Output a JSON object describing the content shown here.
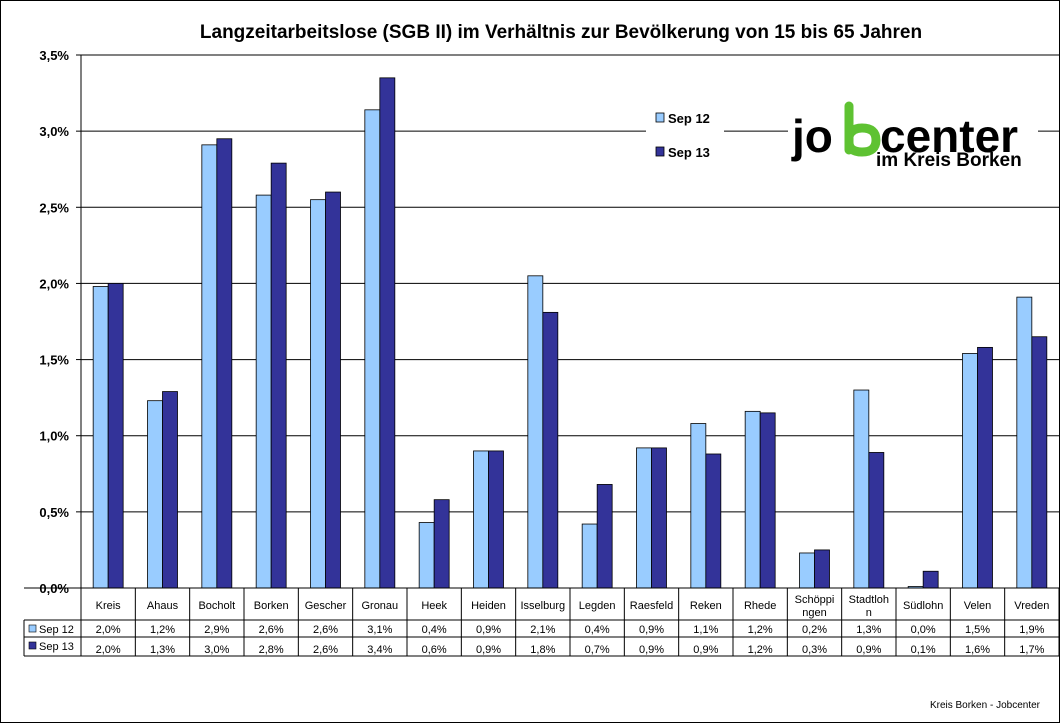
{
  "chart_data": {
    "type": "bar",
    "title": "Langzeitarbeitslose (SGB II) im Verhältnis zur Bevölkerung von 15 bis 65 Jahren",
    "categories": [
      "Kreis",
      "Ahaus",
      "Bocholt",
      "Borken",
      "Gescher",
      "Gronau",
      "Heek",
      "Heiden",
      "Isselburg",
      "Legden",
      "Raesfeld",
      "Reken",
      "Rhede",
      "Schöppi ngen",
      "Stadtloh n",
      "Südlohn",
      "Velen",
      "Vreden"
    ],
    "series": [
      {
        "name": "Sep 12",
        "color": "#99ccff",
        "values": [
          1.98,
          1.23,
          2.91,
          2.58,
          2.55,
          3.14,
          0.43,
          0.9,
          2.05,
          0.42,
          0.92,
          1.08,
          1.16,
          0.23,
          1.3,
          0.01,
          1.54,
          1.91
        ],
        "labels": [
          "2,0%",
          "1,2%",
          "2,9%",
          "2,6%",
          "2,6%",
          "3,1%",
          "0,4%",
          "0,9%",
          "2,1%",
          "0,4%",
          "0,9%",
          "1,1%",
          "1,2%",
          "0,2%",
          "1,3%",
          "0,0%",
          "1,5%",
          "1,9%"
        ]
      },
      {
        "name": "Sep 13",
        "color": "#333399",
        "values": [
          2.0,
          1.29,
          2.95,
          2.79,
          2.6,
          3.35,
          0.58,
          0.9,
          1.81,
          0.68,
          0.92,
          0.88,
          1.15,
          0.25,
          0.89,
          0.11,
          1.58,
          1.65
        ],
        "labels": [
          "2,0%",
          "1,3%",
          "3,0%",
          "2,8%",
          "2,6%",
          "3,4%",
          "0,6%",
          "0,9%",
          "1,8%",
          "0,7%",
          "0,9%",
          "0,9%",
          "1,2%",
          "0,3%",
          "0,9%",
          "0,1%",
          "1,6%",
          "1,7%"
        ]
      }
    ],
    "ylim": [
      0,
      3.5
    ],
    "yticks": [
      "0,0%",
      "0,5%",
      "1,0%",
      "1,5%",
      "2,0%",
      "2,5%",
      "3,0%",
      "3,5%"
    ],
    "grid": true,
    "legend_position": "top-right",
    "data_table": true
  },
  "logo": {
    "main_prefix": "jo",
    "main_suffix": "center",
    "sub": "im Kreis Borken",
    "accent_color": "#5ec232"
  },
  "footer": {
    "source": "Kreis Borken - Jobcenter"
  }
}
